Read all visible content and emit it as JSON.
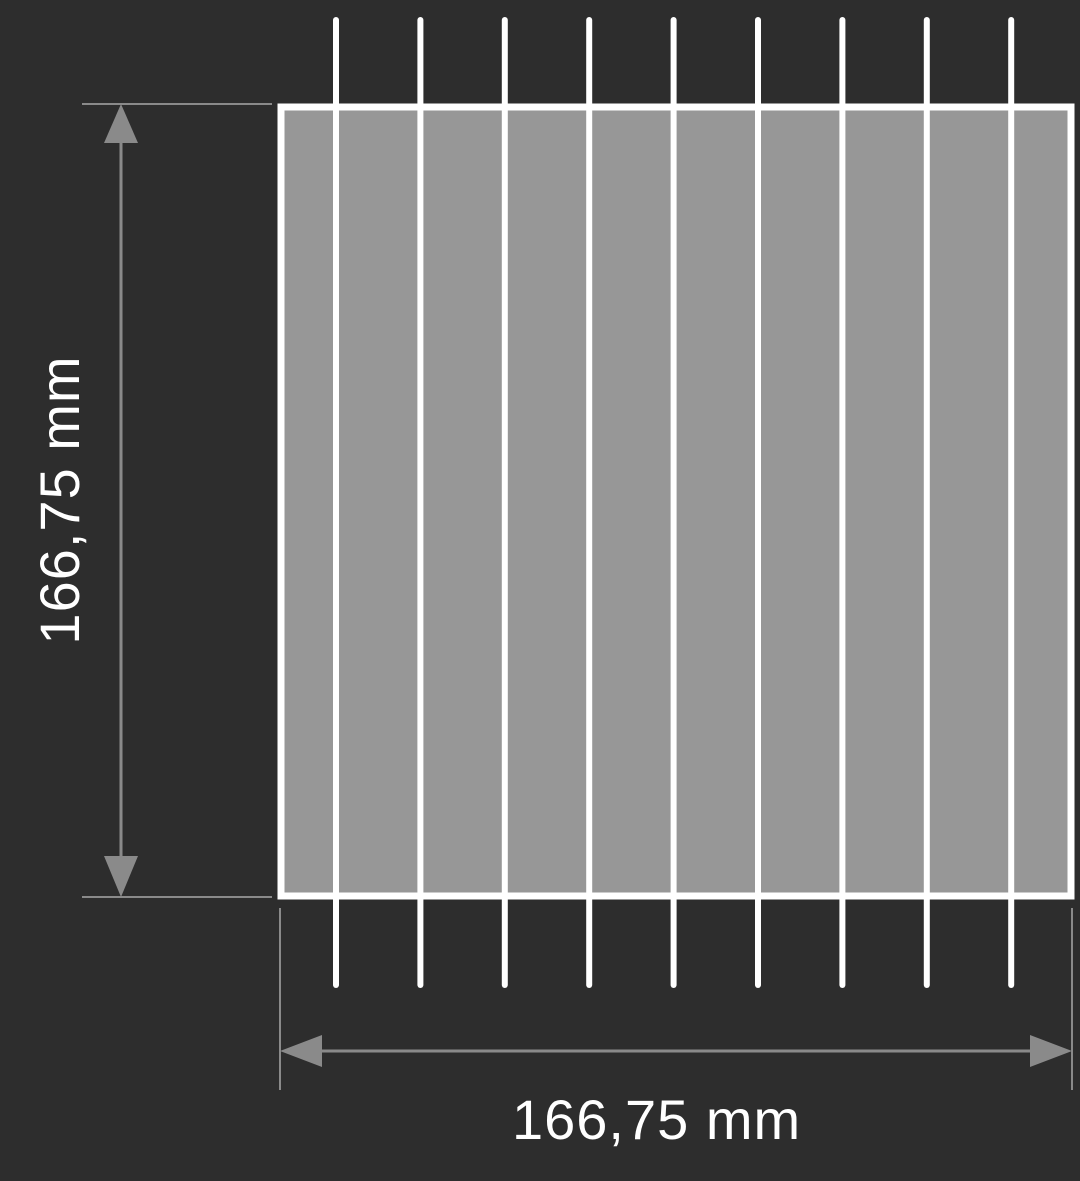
{
  "dimensions": {
    "width_label": "166,75 mm",
    "height_label": "166,75 mm"
  },
  "panel": {
    "bar_count": 9
  },
  "colors": {
    "background": "#2d2d2d",
    "panel_fill": "#979797",
    "panel_border": "#ffffff",
    "bars": "#ffffff",
    "dimension_lines": "#8a8a8a",
    "text": "#ffffff"
  }
}
